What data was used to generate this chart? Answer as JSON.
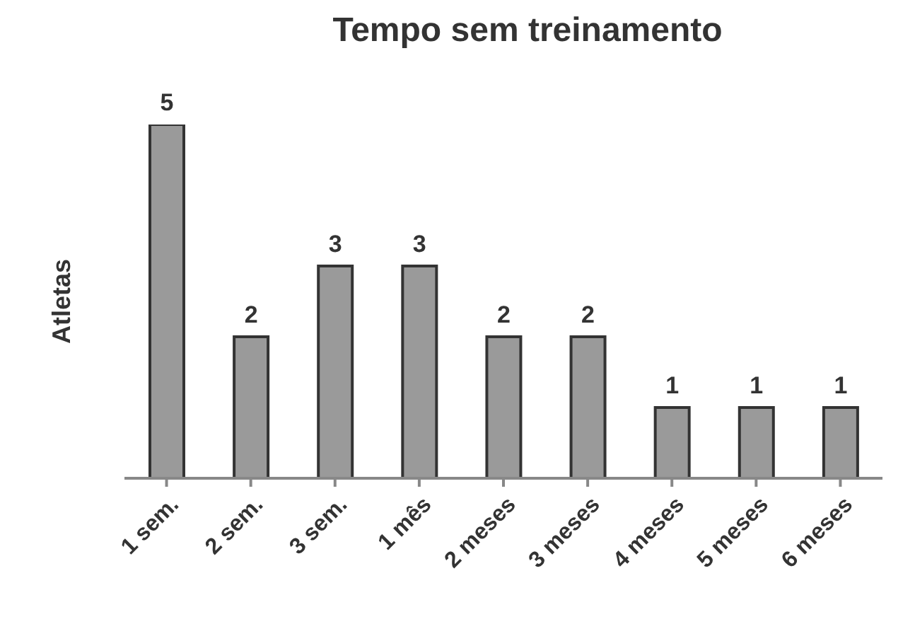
{
  "chart_data": {
    "type": "bar",
    "title": "Tempo sem treinamento",
    "ylabel": "Atletas",
    "categories": [
      "1 sem.",
      "2 sem.",
      "3 sem.",
      "1 mês",
      "2 meses",
      "3 meses",
      "4 meses",
      "5 meses",
      "6 meses"
    ],
    "values": [
      5,
      2,
      3,
      3,
      2,
      2,
      1,
      1,
      1
    ],
    "color": "#9a9a9a",
    "ylim": [
      0,
      5
    ],
    "data_labels": true,
    "tick_labels": "x",
    "grid": false
  }
}
